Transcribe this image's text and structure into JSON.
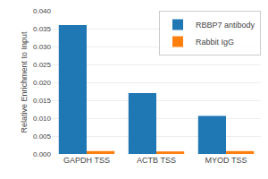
{
  "chart_data": {
    "type": "bar",
    "categories": [
      "GAPDH TSS",
      "ACTB TSS",
      "MYOD TSS"
    ],
    "series": [
      {
        "name": "RBBP7 antibody",
        "values": [
          0.036,
          0.017,
          0.0106
        ]
      },
      {
        "name": "Rabbit IgG",
        "values": [
          0.0008,
          0.0007,
          0.0008
        ]
      }
    ],
    "ylabel": "Relative Enrichment to Input",
    "ylim": [
      0,
      0.04
    ],
    "yticks": [
      {
        "value": 0.0,
        "label": "0.000"
      },
      {
        "value": 0.005,
        "label": "0.005"
      },
      {
        "value": 0.01,
        "label": "0.010"
      },
      {
        "value": 0.015,
        "label": "0.015"
      },
      {
        "value": 0.02,
        "label": "0.020"
      },
      {
        "value": 0.025,
        "label": "0.025"
      },
      {
        "value": 0.03,
        "label": "0.030"
      },
      {
        "value": 0.035,
        "label": "0.035"
      },
      {
        "value": 0.04,
        "label": "0.040"
      }
    ],
    "grid": true,
    "legend": "upper right"
  }
}
